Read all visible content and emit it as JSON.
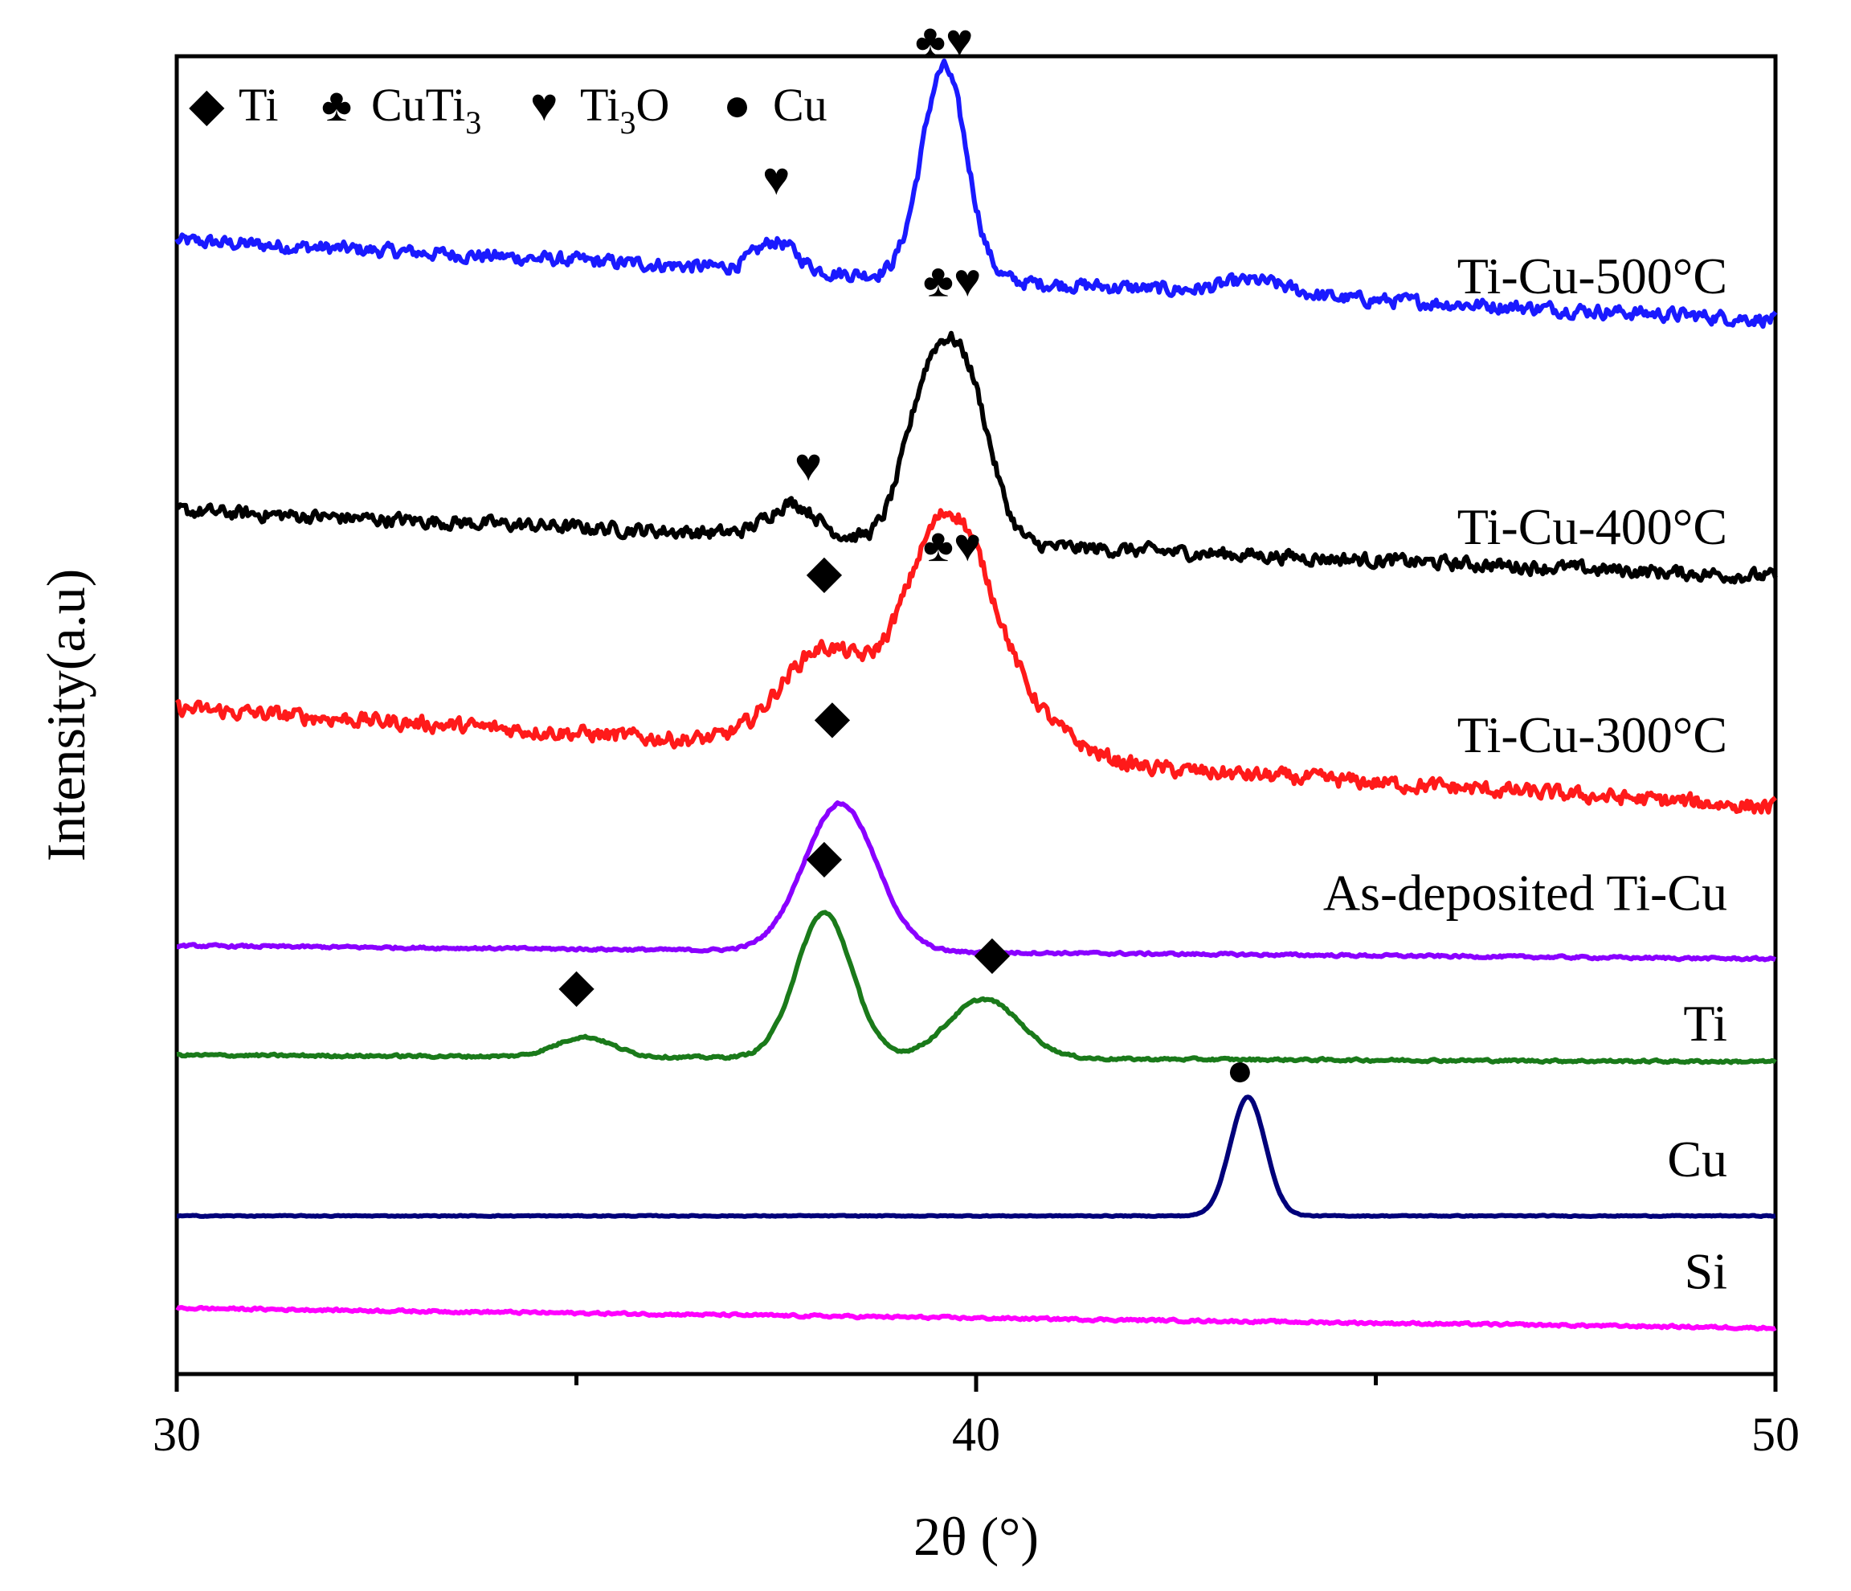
{
  "chart_data": {
    "type": "line",
    "xlabel": "2θ (°)",
    "ylabel": "Intensity(a.u)",
    "xlim": [
      30,
      50
    ],
    "ylim": [
      0,
      1000
    ],
    "xticks": [
      30,
      40,
      50
    ],
    "minor_xticks": [
      35,
      45
    ],
    "yticks": [],
    "grid": false,
    "legend_position": "top-left",
    "legend": [
      {
        "symbol": "◆",
        "name": "Ti",
        "sub": ""
      },
      {
        "symbol": "♣",
        "name": "CuTi",
        "sub": "3"
      },
      {
        "symbol": "♥",
        "name": "Ti",
        "sub": "3",
        "tail": "O"
      },
      {
        "symbol": "●",
        "name": "Cu",
        "sub": ""
      }
    ],
    "series": [
      {
        "name": "Ti-Cu-500°C",
        "color": "#1a1aff",
        "base_start": 860,
        "base_end": 800,
        "noise": 8,
        "peaks": [
          [
            37.5,
            22,
            0.25
          ],
          [
            39.6,
            160,
            0.28
          ],
          [
            43.5,
            10,
            0.4
          ]
        ],
        "label_y": 820
      },
      {
        "name": "Ti-Cu-400°C",
        "color": "#000000",
        "base_start": 655,
        "base_end": 605,
        "noise": 8,
        "peaks": [
          [
            37.7,
            25,
            0.3
          ],
          [
            39.4,
            110,
            0.3
          ],
          [
            39.9,
            110,
            0.3
          ]
        ],
        "label_y": 630
      },
      {
        "name": "Ti-Cu-300°C",
        "color": "#ff1a1a",
        "base_start": 505,
        "base_end": 430,
        "noise": 9,
        "peaks": [
          [
            38.1,
            75,
            0.55
          ],
          [
            39.4,
            105,
            0.45
          ],
          [
            39.9,
            100,
            0.45
          ],
          [
            40.6,
            30,
            0.6
          ]
        ],
        "label_y": 472
      },
      {
        "name": "As-deposited Ti-Cu",
        "color": "#8a00ff",
        "base_start": 325,
        "base_end": 315,
        "noise": 1.5,
        "peaks": [
          [
            38.3,
            112,
            0.45
          ]
        ],
        "label_y": 352
      },
      {
        "name": "Ti",
        "color": "#1a7a1a",
        "base_start": 242,
        "base_end": 237,
        "noise": 1.5,
        "peaks": [
          [
            35.1,
            15,
            0.35
          ],
          [
            38.1,
            110,
            0.35
          ],
          [
            40.1,
            45,
            0.45
          ]
        ],
        "label_y": 253
      },
      {
        "name": "Cu",
        "color": "#00007a",
        "base_start": 120,
        "base_end": 120,
        "noise": 0.6,
        "peaks": [
          [
            43.4,
            90,
            0.22
          ]
        ],
        "label_y": 150
      },
      {
        "name": "Si",
        "color": "#ff00ff",
        "base_start": 50,
        "base_end": 35,
        "noise": 1.5,
        "peaks": [],
        "label_y": 65
      }
    ],
    "annotations": [
      {
        "text": "♣♥",
        "x": 39.6,
        "y": 1000
      },
      {
        "text": "♥",
        "x": 37.5,
        "y": 895
      },
      {
        "text": "♣♥",
        "x": 39.7,
        "y": 818
      },
      {
        "text": "♥",
        "x": 37.9,
        "y": 678
      },
      {
        "text": "♣♥",
        "x": 39.7,
        "y": 617
      },
      {
        "text": "◆",
        "x": 38.1,
        "y": 597
      },
      {
        "text": "◆",
        "x": 38.2,
        "y": 487
      },
      {
        "text": "◆",
        "x": 38.1,
        "y": 381
      },
      {
        "text": "◆",
        "x": 35.0,
        "y": 283
      },
      {
        "text": "◆",
        "x": 40.2,
        "y": 308
      },
      {
        "text": "●",
        "x": 43.3,
        "y": 219
      }
    ]
  }
}
